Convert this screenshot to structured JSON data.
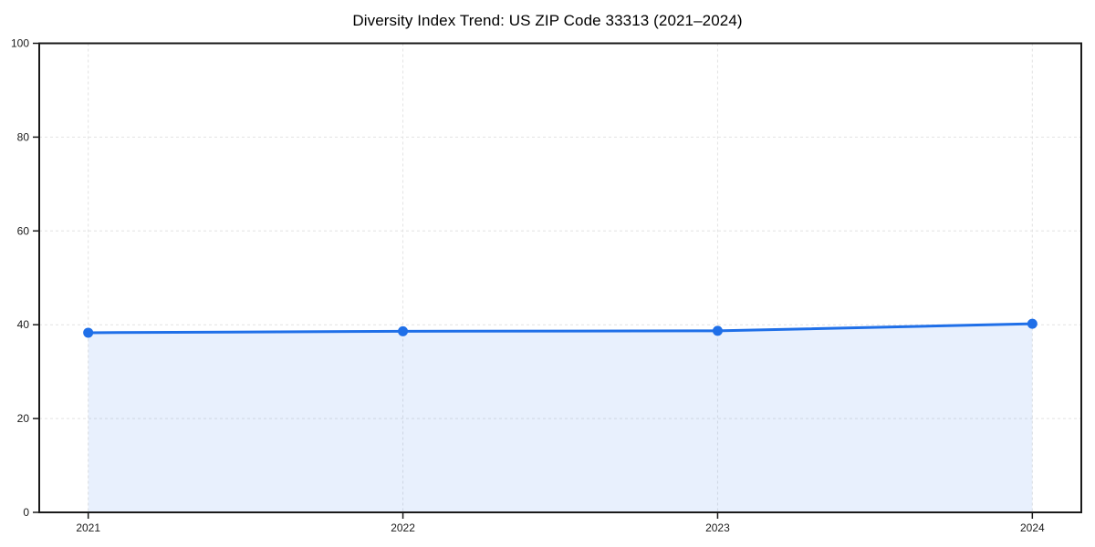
{
  "chart_data": {
    "type": "area",
    "title": "Diversity Index Trend: US ZIP Code 33313 (2021–2024)",
    "categories": [
      "2021",
      "2022",
      "2023",
      "2024"
    ],
    "series": [
      {
        "name": "Diversity Index",
        "values": [
          38.3,
          38.6,
          38.7,
          40.2
        ]
      }
    ],
    "xlabel": "",
    "ylabel": "",
    "ylim": [
      0,
      100
    ],
    "yticks": [
      0,
      20,
      40,
      60,
      80,
      100
    ],
    "legend": "none",
    "grid": {
      "visible": true,
      "style": "dashed",
      "color": "#e2e2e2"
    },
    "styles": {
      "line_color": "#1f6fe8",
      "marker_color": "#1f6fe8",
      "fill_color": "rgba(31,111,232,0.10)",
      "spine_color": "#1a1a1a",
      "tick_color": "#1a1a1a",
      "title_color": "#000000",
      "background": "#ffffff"
    }
  }
}
